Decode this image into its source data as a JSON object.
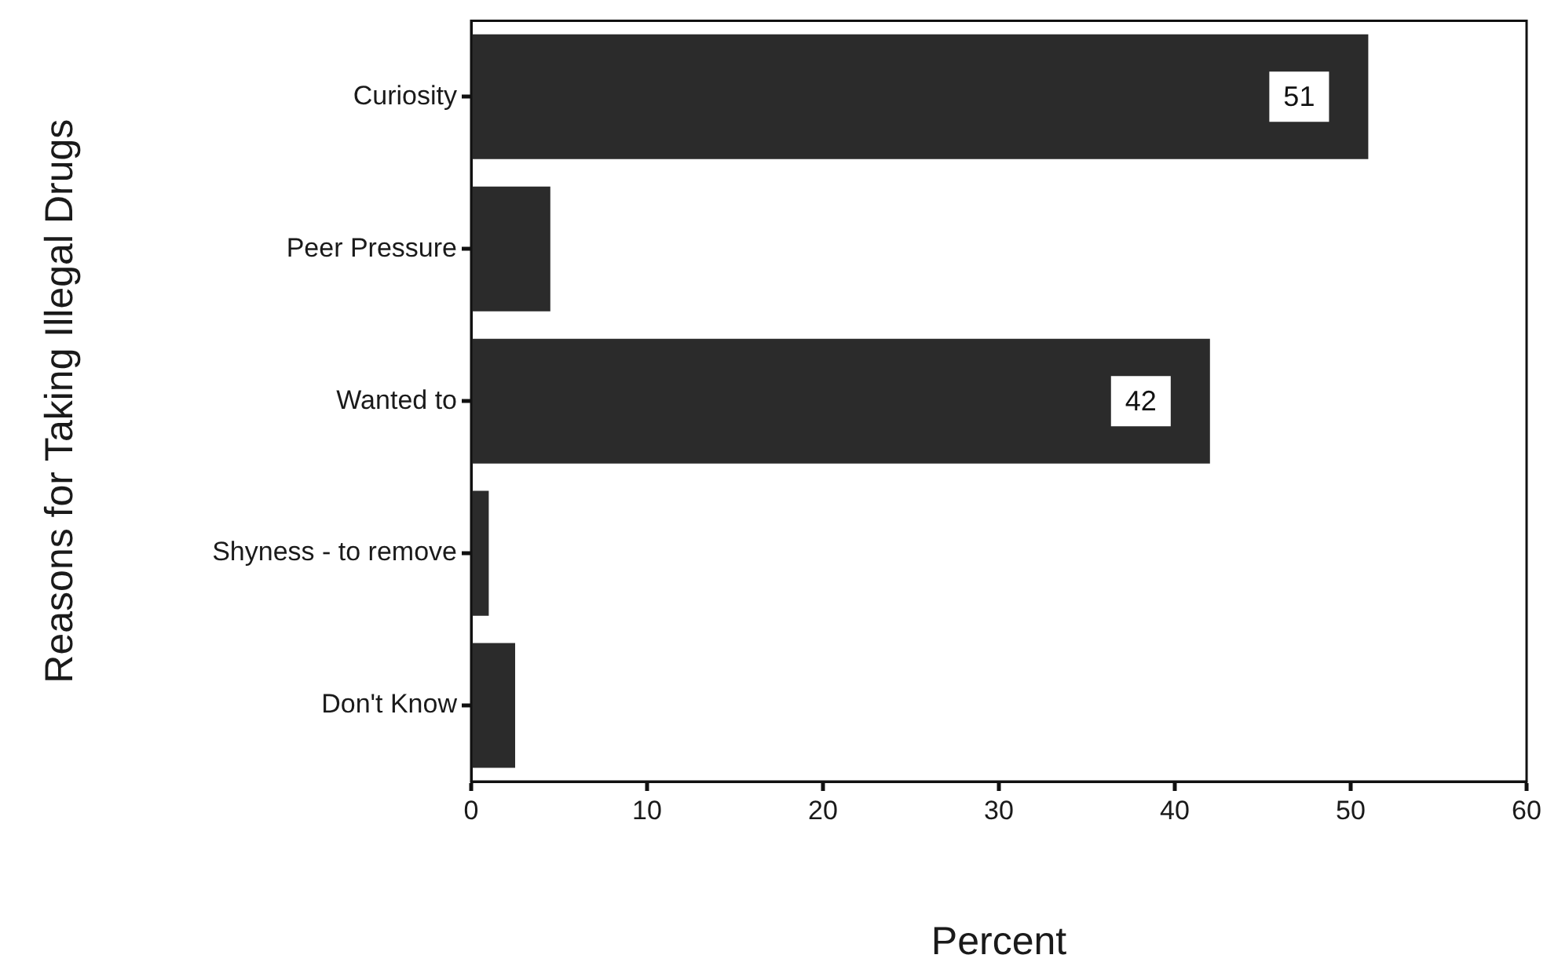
{
  "chart_data": {
    "type": "bar",
    "orientation": "horizontal",
    "xlabel": "Percent",
    "ylabel": "Reasons for Taking Illegal Drugs",
    "categories": [
      "Curiosity",
      "Peer Pressure",
      "Wanted to",
      "Shyness - to remove",
      "Don't Know"
    ],
    "values": [
      51,
      4.5,
      42,
      1,
      2.5
    ],
    "value_labels": [
      "51",
      null,
      "42",
      null,
      null
    ],
    "color": "#2b2b2b",
    "xlim": [
      0,
      60
    ],
    "xticks": [
      0,
      10,
      20,
      30,
      40,
      50,
      60
    ],
    "grid": false,
    "legend": false
  }
}
